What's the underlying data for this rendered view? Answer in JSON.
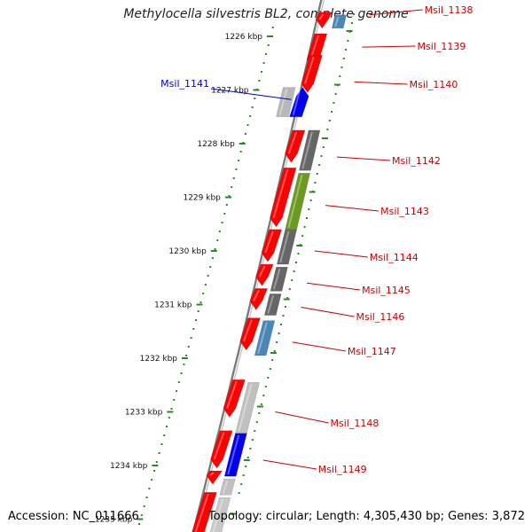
{
  "title": "Methylocella silvestris BL2, complete genome",
  "accession": "Accession: NC_011666",
  "topology": "Topology: circular; Length: 4,305,430 bp; Genes: 3,872",
  "colors": {
    "backbone": "#7a7a7a",
    "tick": "#2a8a2a",
    "label_red": "#cc0000",
    "label_blue": "#0000cc"
  },
  "ruler": [
    {
      "kbp": 1226,
      "label": "1226 kbp"
    },
    {
      "kbp": 1227,
      "label": "1227 kbp"
    },
    {
      "kbp": 1228,
      "label": "1228 kbp"
    },
    {
      "kbp": 1229,
      "label": "1229 kbp"
    },
    {
      "kbp": 1230,
      "label": "1230 kbp"
    },
    {
      "kbp": 1231,
      "label": "1231 kbp"
    },
    {
      "kbp": 1232,
      "label": "1232 kbp"
    },
    {
      "kbp": 1233,
      "label": "1233 kbp"
    },
    {
      "kbp": 1234,
      "label": "1234 kbp"
    },
    {
      "kbp": 1235,
      "label": "1235 kbp"
    }
  ],
  "features": [
    {
      "lane": 1,
      "start": 1225.55,
      "end": 1225.85,
      "color": "#ff0000",
      "dir": 1
    },
    {
      "lane": 2,
      "start": 1225.6,
      "end": 1225.85,
      "color": "#4a86b8",
      "dir": 0
    },
    {
      "lane": 1,
      "start": 1225.95,
      "end": 1226.6,
      "color": "#ff0000",
      "dir": 1
    },
    {
      "lane": 1,
      "start": 1226.35,
      "end": 1227.05,
      "color": "#ff0000",
      "dir": 1
    },
    {
      "lane": -1,
      "start": 1226.95,
      "end": 1227.5,
      "color": "#b8b8b8",
      "dir": 0
    },
    {
      "lane": 0,
      "start": 1226.95,
      "end": 1227.5,
      "color": "#0000ee",
      "dir": -1
    },
    {
      "lane": 1,
      "start": 1227.75,
      "end": 1228.35,
      "color": "#ff0000",
      "dir": 1
    },
    {
      "lane": 2,
      "start": 1227.75,
      "end": 1228.5,
      "color": "#666666",
      "dir": 0
    },
    {
      "lane": 1,
      "start": 1228.45,
      "end": 1229.55,
      "color": "#ff0000",
      "dir": 1
    },
    {
      "lane": 2,
      "start": 1228.55,
      "end": 1229.6,
      "color": "#6b9a1e",
      "dir": 0
    },
    {
      "lane": 1,
      "start": 1229.6,
      "end": 1230.2,
      "color": "#ff0000",
      "dir": 1
    },
    {
      "lane": 2,
      "start": 1229.6,
      "end": 1230.25,
      "color": "#666666",
      "dir": 0
    },
    {
      "lane": 1,
      "start": 1230.25,
      "end": 1230.65,
      "color": "#ff0000",
      "dir": 1
    },
    {
      "lane": 2,
      "start": 1230.3,
      "end": 1230.75,
      "color": "#666666",
      "dir": 0
    },
    {
      "lane": 1,
      "start": 1230.7,
      "end": 1231.1,
      "color": "#ff0000",
      "dir": 1
    },
    {
      "lane": 2,
      "start": 1230.8,
      "end": 1231.2,
      "color": "#666666",
      "dir": 0
    },
    {
      "lane": 1,
      "start": 1231.25,
      "end": 1231.85,
      "color": "#ff0000",
      "dir": 1
    },
    {
      "lane": 2,
      "start": 1231.3,
      "end": 1231.95,
      "color": "#4a86b8",
      "dir": 0
    },
    {
      "lane": 1,
      "start": 1232.4,
      "end": 1233.1,
      "color": "#ff0000",
      "dir": 1
    },
    {
      "lane": 2,
      "start": 1232.45,
      "end": 1233.4,
      "color": "#c0c0c0",
      "dir": 0
    },
    {
      "lane": 1,
      "start": 1233.35,
      "end": 1234.05,
      "color": "#ff0000",
      "dir": 1
    },
    {
      "lane": 2,
      "start": 1233.4,
      "end": 1234.2,
      "color": "#0000ee",
      "dir": 0
    },
    {
      "lane": 1,
      "start": 1234.1,
      "end": 1234.35,
      "color": "#ff0000",
      "dir": 1
    },
    {
      "lane": 2,
      "start": 1234.25,
      "end": 1234.55,
      "color": "#c0c0c0",
      "dir": 0
    },
    {
      "lane": 1,
      "start": 1234.5,
      "end": 1235.5,
      "color": "#ff0000",
      "dir": 1
    },
    {
      "lane": 2,
      "start": 1234.6,
      "end": 1235.5,
      "color": "#c8c8c8",
      "dir": 0
    }
  ],
  "labels": [
    {
      "text": "Msil_1138",
      "color": "#cc0000",
      "pos": 1225.6,
      "lane": 2,
      "side": "right",
      "dy": 15
    },
    {
      "text": "Msil_1139",
      "color": "#cc0000",
      "pos": 1226.2,
      "lane": 2,
      "side": "right",
      "dy": 56
    },
    {
      "text": "Msil_1140",
      "color": "#cc0000",
      "pos": 1226.85,
      "lane": 2,
      "side": "right",
      "dy": 99
    },
    {
      "text": "Msil_1141",
      "color": "#0000cc",
      "pos": 1227.08,
      "lane": 0,
      "side": "left",
      "dy": 98
    },
    {
      "text": "Msil_1142",
      "color": "#cc0000",
      "pos": 1228.25,
      "lane": 2,
      "side": "right",
      "dy": 185
    },
    {
      "text": "Msil_1143",
      "color": "#cc0000",
      "pos": 1229.15,
      "lane": 2,
      "side": "right",
      "dy": 242
    },
    {
      "text": "Msil_1144",
      "color": "#cc0000",
      "pos": 1230.0,
      "lane": 2,
      "side": "right",
      "dy": 294
    },
    {
      "text": "Msil_1145",
      "color": "#cc0000",
      "pos": 1230.6,
      "lane": 2,
      "side": "right",
      "dy": 331
    },
    {
      "text": "Msil_1146",
      "color": "#cc0000",
      "pos": 1231.05,
      "lane": 2,
      "side": "right",
      "dy": 361
    },
    {
      "text": "Msil_1147",
      "color": "#cc0000",
      "pos": 1231.7,
      "lane": 2,
      "side": "right",
      "dy": 400
    },
    {
      "text": "Msil_1148",
      "color": "#cc0000",
      "pos": 1233.0,
      "lane": 2,
      "side": "right",
      "dy": 481
    },
    {
      "text": "Msil_1149",
      "color": "#cc0000",
      "pos": 1233.9,
      "lane": 2,
      "side": "right",
      "dy": 533
    }
  ]
}
